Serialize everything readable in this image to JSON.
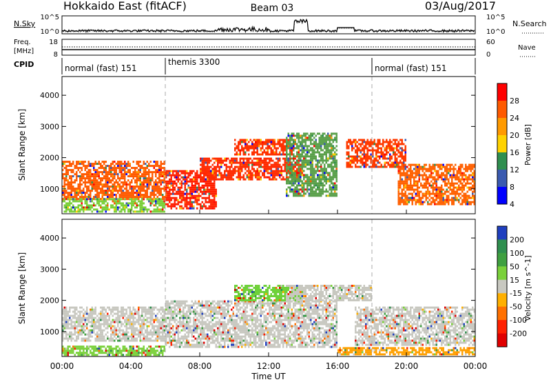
{
  "header": {
    "station": "Hokkaido East (fitACF)",
    "beam": "Beam 03",
    "date": "03/Aug/2017"
  },
  "noise_panel": {
    "left_label": "N.Sky",
    "right_label": "N.Search",
    "ticks": [
      "10^5",
      "10^0"
    ],
    "right_ticks": [
      "10^5",
      "10^0"
    ]
  },
  "freq_panel": {
    "left_label_line1": "Freq.",
    "left_label_line2": "[MHz]",
    "left_ticks": [
      "18",
      "8"
    ],
    "right_label": "Nave",
    "right_ticks": [
      "60",
      "0"
    ]
  },
  "cpid_panel": {
    "label": "CPID",
    "segments": [
      {
        "start_hour": 0,
        "text": "normal (fast) 151"
      },
      {
        "start_hour": 6,
        "text": "themis 3300"
      },
      {
        "start_hour": 18,
        "text": "normal (fast) 151"
      }
    ]
  },
  "x_axis": {
    "label": "Time UT",
    "tick_hours": [
      0,
      4,
      8,
      12,
      16,
      20,
      24
    ],
    "tick_labels": [
      "00:00",
      "04:00",
      "08:00",
      "12:00",
      "16:00",
      "20:00",
      "00:00"
    ]
  },
  "chart_data": [
    {
      "type": "heatmap",
      "name": "power",
      "ylabel": "Slant Range [km]",
      "y_ticks": [
        1000,
        2000,
        3000,
        4000
      ],
      "ylim": [
        200,
        4600
      ],
      "xlim_hours": [
        0,
        24
      ],
      "colorbar_label": "Power [dB]",
      "colorbar_ticks": [
        "28",
        "24",
        "20",
        "16",
        "12",
        "8",
        "4"
      ],
      "colors": [
        "#ff0000",
        "#ff5a00",
        "#ff9a00",
        "#ffd200",
        "#2f8f4f",
        "#3a5ab0",
        "#0000ff"
      ],
      "regions": [
        {
          "t0": 0.0,
          "t1": 6.0,
          "r0": 700,
          "r1": 1900,
          "color": "#ff5a00"
        },
        {
          "t0": 0.0,
          "t1": 6.0,
          "r0": 300,
          "r1": 700,
          "color": "#7bcf3a"
        },
        {
          "t0": 6.0,
          "t1": 9.0,
          "r0": 400,
          "r1": 1600,
          "color": "#ff2000"
        },
        {
          "t0": 8.0,
          "t1": 14.0,
          "r0": 1300,
          "r1": 2000,
          "color": "#ff2a00"
        },
        {
          "t0": 10.0,
          "t1": 13.5,
          "r0": 2100,
          "r1": 2600,
          "color": "#ff3000"
        },
        {
          "t0": 13.0,
          "t1": 16.0,
          "r0": 800,
          "r1": 2800,
          "color": "#5aa04a"
        },
        {
          "t0": 16.5,
          "t1": 20.0,
          "r0": 1700,
          "r1": 2600,
          "color": "#ff3a00"
        },
        {
          "t0": 19.5,
          "t1": 24.0,
          "r0": 500,
          "r1": 1800,
          "color": "#ff6000"
        }
      ]
    },
    {
      "type": "heatmap",
      "name": "velocity",
      "ylabel": "Slant Range [km]",
      "y_ticks": [
        1000,
        2000,
        3000,
        4000
      ],
      "ylim": [
        200,
        4600
      ],
      "xlim_hours": [
        0,
        24
      ],
      "colorbar_label": "Velocity [m s^-1]",
      "colorbar_ticks": [
        "200",
        "100",
        "50",
        "15",
        "-15",
        "-50",
        "-100",
        "-200"
      ],
      "colors": [
        "#1f3fbf",
        "#2f8f4f",
        "#3fa040",
        "#7ad13a",
        "#c8c8c0",
        "#ffb000",
        "#ff7000",
        "#ff2000",
        "#e00000"
      ],
      "regions": [
        {
          "t0": 0.0,
          "t1": 6.0,
          "r0": 700,
          "r1": 1800,
          "color": "#c8c8c0"
        },
        {
          "t0": 0.0,
          "t1": 6.0,
          "r0": 250,
          "r1": 550,
          "color": "#7ad13a"
        },
        {
          "t0": 6.0,
          "t1": 16.0,
          "r0": 500,
          "r1": 2000,
          "color": "#c8c8c0"
        },
        {
          "t0": 10.0,
          "t1": 14.0,
          "r0": 2000,
          "r1": 2500,
          "color": "#6ed13a"
        },
        {
          "t0": 13.0,
          "t1": 18.0,
          "r0": 2000,
          "r1": 2500,
          "color": "#c8c8c0"
        },
        {
          "t0": 17.0,
          "t1": 24.0,
          "r0": 600,
          "r1": 1800,
          "color": "#c8c8c0"
        },
        {
          "t0": 16.0,
          "t1": 24.0,
          "r0": 250,
          "r1": 500,
          "color": "#ffa000"
        }
      ]
    }
  ]
}
